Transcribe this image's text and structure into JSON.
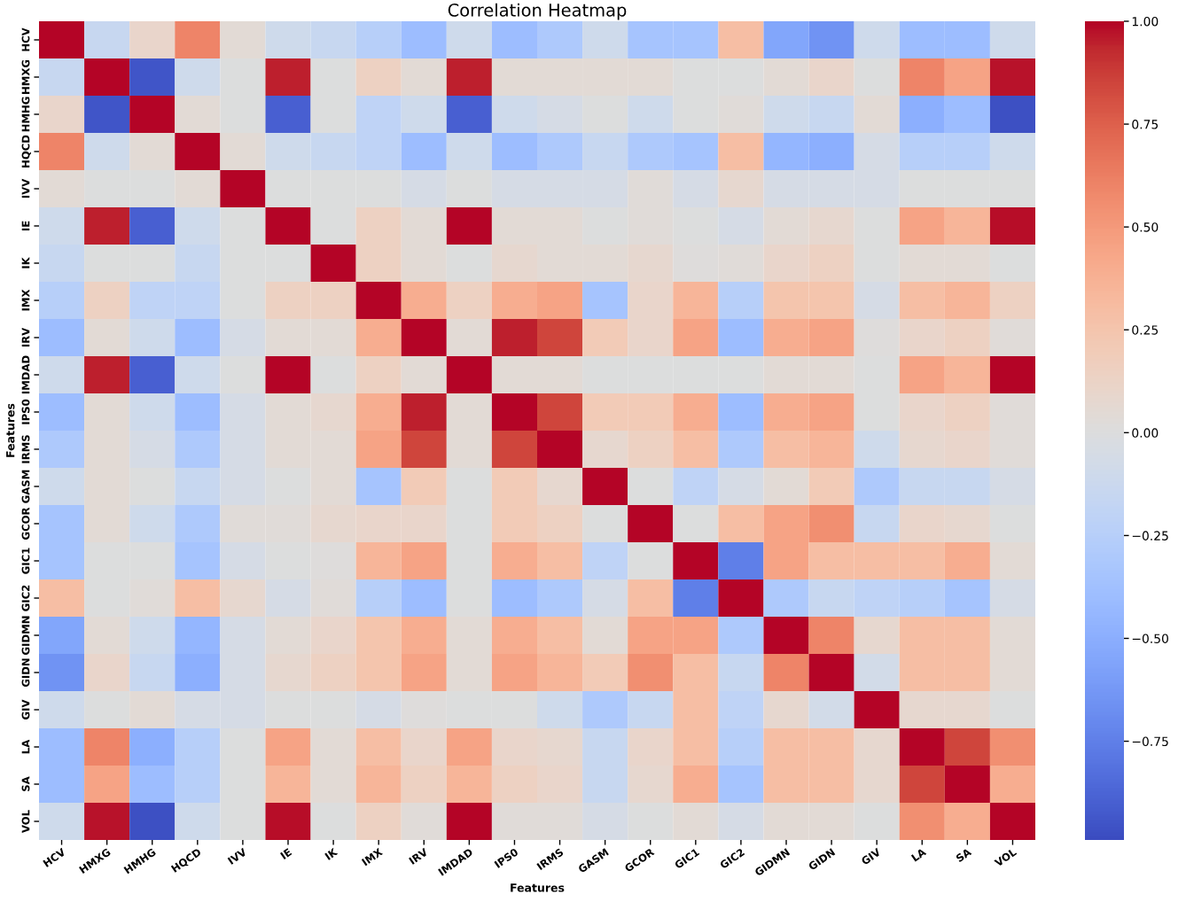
{
  "chart_data": {
    "type": "heatmap",
    "title": "Correlation Heatmap",
    "xlabel": "Features",
    "ylabel": "Features",
    "categories": [
      "HCV",
      "HMXG",
      "HMHG",
      "HQCD",
      "IVV",
      "IE",
      "IK",
      "IMX",
      "IRV",
      "IMDAD",
      "IPS0",
      "IRMS",
      "GASM",
      "GCOR",
      "GIC1",
      "GIC2",
      "GIDMN",
      "GIDN",
      "GIV",
      "LA",
      "SA",
      "VOL"
    ],
    "y_categories": [
      "HCV",
      "HMXG",
      "HMHG",
      "HQCD",
      "IVV",
      "IE",
      "IK",
      "IMX",
      "IRV",
      "IMDAD",
      "IPS0",
      "IRMS",
      "GASM",
      "GCOR",
      "GIC1",
      "GIC2",
      "GIDMN",
      "GIDN",
      "GIV",
      "LA",
      "SA",
      "VOL"
    ],
    "cells": [
      [
        1,
        -0.15,
        0.1,
        0.6,
        0.05,
        -0.1,
        -0.15,
        -0.25,
        -0.4,
        -0.1,
        -0.4,
        -0.3,
        -0.1,
        -0.35,
        -0.35,
        0.3,
        -0.55,
        -0.65,
        -0.1,
        -0.4,
        -0.4,
        -0.1
      ],
      [
        -0.15,
        1,
        -0.95,
        -0.1,
        0.0,
        0.95,
        0.0,
        0.15,
        0.05,
        0.95,
        0.05,
        0.05,
        0.05,
        0.05,
        0.0,
        0.0,
        0.05,
        0.1,
        0.0,
        0.6,
        0.45,
        0.97
      ],
      [
        0.1,
        -0.95,
        1,
        0.05,
        0.0,
        -0.9,
        0.0,
        -0.2,
        -0.1,
        -0.9,
        -0.1,
        -0.05,
        0.0,
        -0.1,
        0.0,
        0.03,
        -0.1,
        -0.15,
        0.05,
        -0.5,
        -0.4,
        -0.97
      ],
      [
        0.6,
        -0.1,
        0.05,
        1,
        0.05,
        -0.1,
        -0.15,
        -0.2,
        -0.4,
        -0.1,
        -0.4,
        -0.3,
        -0.15,
        -0.3,
        -0.35,
        0.3,
        -0.45,
        -0.5,
        -0.05,
        -0.25,
        -0.25,
        -0.1
      ],
      [
        0.05,
        0.0,
        0.0,
        0.05,
        1,
        0.0,
        0.0,
        0.0,
        -0.05,
        0.0,
        -0.05,
        -0.05,
        -0.05,
        0.03,
        -0.05,
        0.08,
        -0.05,
        -0.05,
        -0.05,
        0.0,
        0.0,
        0.0
      ],
      [
        -0.1,
        0.95,
        -0.9,
        -0.1,
        0.0,
        1,
        0.0,
        0.15,
        0.05,
        1.0,
        0.05,
        0.05,
        0.0,
        0.03,
        0.0,
        -0.05,
        0.05,
        0.08,
        0.0,
        0.45,
        0.35,
        0.98
      ],
      [
        -0.15,
        0.0,
        0.0,
        -0.15,
        0.0,
        0.0,
        1,
        0.15,
        0.05,
        0.0,
        0.08,
        0.05,
        0.05,
        0.08,
        0.02,
        0.03,
        0.1,
        0.15,
        0.0,
        0.05,
        0.05,
        0.0
      ],
      [
        -0.25,
        0.15,
        -0.2,
        -0.2,
        0.0,
        0.15,
        0.15,
        1,
        0.4,
        0.15,
        0.4,
        0.45,
        -0.35,
        0.1,
        0.35,
        -0.25,
        0.25,
        0.25,
        -0.05,
        0.3,
        0.35,
        0.15
      ],
      [
        -0.4,
        0.05,
        -0.1,
        -0.4,
        -0.05,
        0.05,
        0.05,
        0.4,
        1,
        0.05,
        0.95,
        0.85,
        0.2,
        0.1,
        0.45,
        -0.4,
        0.4,
        0.45,
        0.02,
        0.1,
        0.15,
        0.03
      ],
      [
        -0.1,
        0.95,
        -0.9,
        -0.1,
        0.0,
        1.0,
        0.0,
        0.15,
        0.05,
        1,
        0.05,
        0.05,
        0.0,
        0.0,
        0.0,
        0.0,
        0.05,
        0.05,
        0.0,
        0.45,
        0.35,
        1.0
      ],
      [
        -0.4,
        0.05,
        -0.1,
        -0.4,
        -0.05,
        0.05,
        0.08,
        0.4,
        0.95,
        0.05,
        1,
        0.85,
        0.2,
        0.2,
        0.4,
        -0.4,
        0.4,
        0.45,
        0.0,
        0.1,
        0.15,
        0.03
      ],
      [
        -0.3,
        0.05,
        -0.05,
        -0.3,
        -0.05,
        0.05,
        0.05,
        0.45,
        0.85,
        0.05,
        0.85,
        1,
        0.08,
        0.15,
        0.3,
        -0.3,
        0.3,
        0.35,
        -0.1,
        0.08,
        0.1,
        0.03
      ],
      [
        -0.1,
        0.05,
        0.0,
        -0.15,
        -0.05,
        0.0,
        0.05,
        -0.35,
        0.2,
        0.0,
        0.2,
        0.08,
        1,
        0.0,
        -0.2,
        -0.05,
        0.05,
        0.2,
        -0.3,
        -0.15,
        -0.15,
        -0.05
      ],
      [
        -0.35,
        0.05,
        -0.1,
        -0.3,
        0.03,
        0.03,
        0.08,
        0.1,
        0.1,
        0.0,
        0.2,
        0.15,
        0.0,
        1,
        0.0,
        0.3,
        0.45,
        0.55,
        -0.15,
        0.1,
        0.08,
        0.0
      ],
      [
        -0.35,
        0.0,
        0.0,
        -0.35,
        -0.05,
        0.0,
        0.02,
        0.35,
        0.45,
        0.0,
        0.4,
        0.3,
        -0.2,
        0.0,
        1,
        -0.75,
        0.45,
        0.3,
        0.3,
        0.3,
        0.4,
        0.05
      ],
      [
        0.3,
        0.0,
        0.03,
        0.3,
        0.08,
        -0.05,
        0.03,
        -0.25,
        -0.4,
        0.0,
        -0.4,
        -0.3,
        -0.05,
        0.3,
        -0.75,
        1,
        -0.3,
        -0.15,
        -0.2,
        -0.25,
        -0.35,
        -0.05
      ],
      [
        -0.55,
        0.05,
        -0.1,
        -0.45,
        -0.05,
        0.05,
        0.1,
        0.25,
        0.4,
        0.05,
        0.4,
        0.3,
        0.05,
        0.45,
        0.45,
        -0.3,
        1,
        0.6,
        0.08,
        0.3,
        0.3,
        0.05
      ],
      [
        -0.65,
        0.1,
        -0.15,
        -0.5,
        -0.05,
        0.08,
        0.15,
        0.25,
        0.45,
        0.05,
        0.45,
        0.35,
        0.2,
        0.55,
        0.3,
        -0.15,
        0.6,
        1,
        -0.08,
        0.3,
        0.3,
        0.05
      ],
      [
        -0.1,
        0.0,
        0.05,
        -0.05,
        -0.05,
        0.0,
        0.0,
        -0.05,
        0.02,
        0.0,
        0.0,
        -0.1,
        -0.3,
        -0.15,
        0.3,
        -0.2,
        0.08,
        -0.08,
        1,
        0.08,
        0.08,
        0.0
      ],
      [
        -0.4,
        0.6,
        -0.5,
        -0.25,
        0.0,
        0.45,
        0.05,
        0.3,
        0.1,
        0.45,
        0.1,
        0.08,
        -0.15,
        0.1,
        0.3,
        -0.25,
        0.3,
        0.3,
        0.08,
        1,
        0.85,
        0.55
      ],
      [
        -0.4,
        0.45,
        -0.4,
        -0.25,
        0.0,
        0.35,
        0.05,
        0.35,
        0.15,
        0.35,
        0.15,
        0.1,
        -0.15,
        0.08,
        0.4,
        -0.35,
        0.3,
        0.3,
        0.08,
        0.85,
        1,
        0.4
      ],
      [
        -0.1,
        0.97,
        -0.97,
        -0.1,
        0.0,
        0.98,
        0.0,
        0.15,
        0.03,
        1.0,
        0.03,
        0.03,
        -0.05,
        0.0,
        0.05,
        -0.05,
        0.05,
        0.05,
        0.0,
        0.55,
        0.4,
        1
      ]
    ],
    "clim": [
      -0.99,
      1
    ],
    "cticks": [
      {
        "value": 1,
        "label": "1.00"
      },
      {
        "value": 0.75,
        "label": "0.75"
      },
      {
        "value": 0.5,
        "label": "0.50"
      },
      {
        "value": 0.25,
        "label": "0.25"
      },
      {
        "value": 0,
        "label": "0.00"
      },
      {
        "value": -0.25,
        "label": "−0.25"
      },
      {
        "value": -0.5,
        "label": "−0.50"
      },
      {
        "value": -0.75,
        "label": "−0.75"
      }
    ]
  }
}
